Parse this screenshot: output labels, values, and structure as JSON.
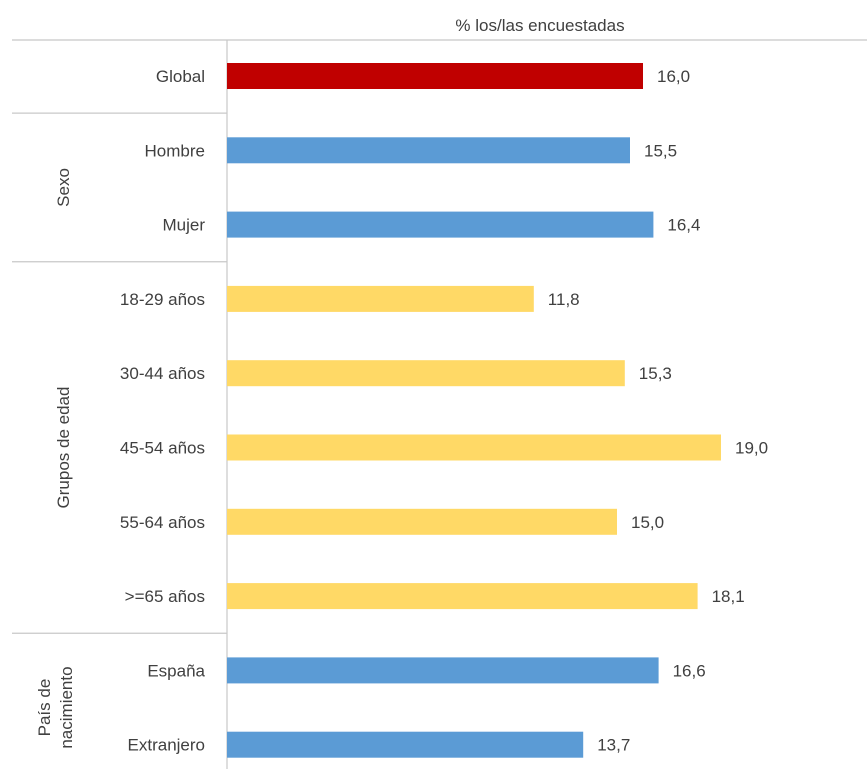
{
  "chart_data": {
    "type": "bar",
    "orientation": "horizontal",
    "title": "",
    "xlabel": "% los/las encuestadas",
    "ylabel": "",
    "xlim": [
      0,
      20
    ],
    "grid": false,
    "legend": "none",
    "groups": [
      {
        "name": "",
        "categories": [
          "Global"
        ]
      },
      {
        "name": "Sexo",
        "categories": [
          "Hombre",
          "Mujer"
        ]
      },
      {
        "name": "Grupos de edad",
        "categories": [
          "18-29 años",
          "30-44 años",
          "45-54 años",
          "55-64 años",
          ">=65 años"
        ]
      },
      {
        "name": "País de nacimiento",
        "name_lines": [
          "País de",
          "nacimiento"
        ],
        "categories": [
          "España",
          "Extranjero"
        ]
      }
    ],
    "categories": [
      "Global",
      "Hombre",
      "Mujer",
      "18-29 años",
      "30-44 años",
      "45-54 años",
      "55-64 años",
      ">=65 años",
      "España",
      "Extranjero"
    ],
    "values": [
      16.0,
      15.5,
      16.4,
      11.8,
      15.3,
      19.0,
      15.0,
      18.1,
      16.6,
      13.7
    ],
    "value_labels": [
      "16,0",
      "15,5",
      "16,4",
      "11,8",
      "15,3",
      "19,0",
      "15,0",
      "18,1",
      "16,6",
      "13,7"
    ],
    "colors": [
      "#c00000",
      "#5b9bd5",
      "#5b9bd5",
      "#ffd966",
      "#ffd966",
      "#ffd966",
      "#ffd966",
      "#ffd966",
      "#5b9bd5",
      "#5b9bd5"
    ]
  }
}
